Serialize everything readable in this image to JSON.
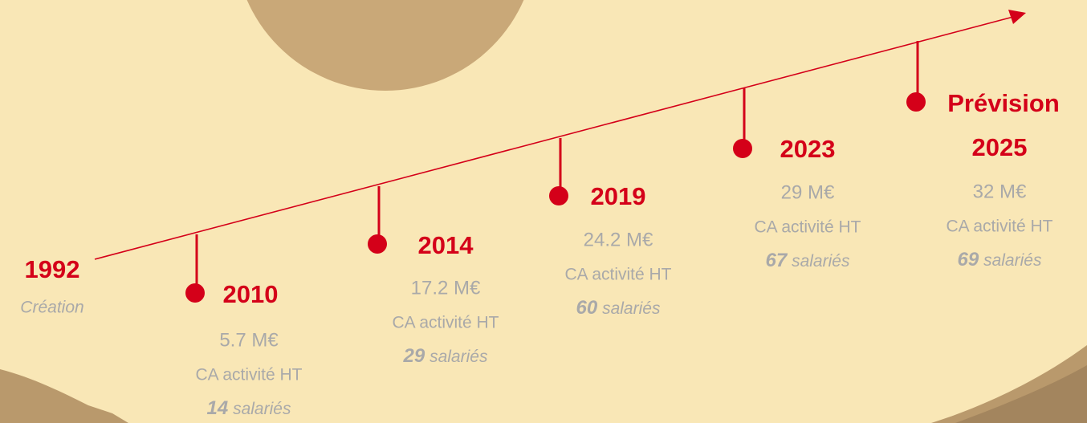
{
  "start": {
    "year": "1992",
    "label": "Création"
  },
  "milestones": [
    {
      "year": "2010",
      "revenue": "5.7 M€",
      "revenue_label": "CA activité HT",
      "staff": "14",
      "staff_label": "salariés"
    },
    {
      "year": "2014",
      "revenue": "17.2 M€",
      "revenue_label": "CA activité HT",
      "staff": "29",
      "staff_label": "salariés"
    },
    {
      "year": "2019",
      "revenue": "24.2 M€",
      "revenue_label": "CA activité HT",
      "staff": "60",
      "staff_label": "salariés"
    },
    {
      "year": "2023",
      "revenue": "29 M€",
      "revenue_label": "CA activité HT",
      "staff": "67",
      "staff_label": "salariés"
    },
    {
      "prefix": "Prévision",
      "year": "2025",
      "revenue": "32 M€",
      "revenue_label": "CA activité HT",
      "staff": "69",
      "staff_label": "salariés"
    }
  ]
}
